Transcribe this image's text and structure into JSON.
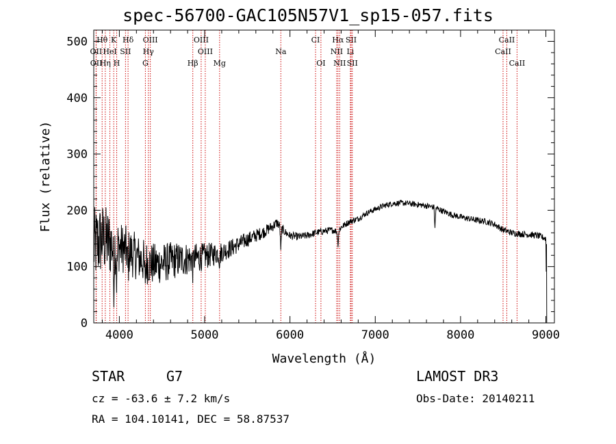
{
  "chart_data": {
    "type": "line",
    "title": "spec-56700-GAC105N57V1_sp15-057.fits",
    "xlabel": "Wavelength (Å)",
    "ylabel": "Flux (relative)",
    "xlim": [
      3700,
      9100
    ],
    "ylim": [
      0,
      520
    ],
    "xticks": [
      4000,
      5000,
      6000,
      7000,
      8000,
      9000
    ],
    "yticks": [
      0,
      100,
      200,
      300,
      400,
      500
    ],
    "continuum_x": [
      3700,
      3800,
      3900,
      4000,
      4100,
      4200,
      4300,
      4400,
      4500,
      4600,
      4700,
      4800,
      4900,
      5000,
      5100,
      5200,
      5300,
      5400,
      5500,
      5600,
      5700,
      5800,
      5850,
      5890,
      5950,
      6000,
      6100,
      6200,
      6300,
      6400,
      6500,
      6560,
      6600,
      6700,
      6800,
      6900,
      7000,
      7100,
      7200,
      7300,
      7400,
      7500,
      7600,
      7700,
      7800,
      7900,
      8000,
      8100,
      8200,
      8300,
      8400,
      8500,
      8600,
      8700,
      8800,
      8900,
      9000,
      9010
    ],
    "continuum_y": [
      135,
      150,
      140,
      135,
      128,
      118,
      108,
      104,
      106,
      110,
      112,
      114,
      115,
      118,
      122,
      126,
      132,
      140,
      148,
      155,
      162,
      172,
      178,
      170,
      160,
      155,
      153,
      155,
      160,
      163,
      165,
      162,
      170,
      180,
      185,
      195,
      202,
      208,
      212,
      213,
      212,
      210,
      208,
      205,
      198,
      192,
      188,
      185,
      182,
      180,
      175,
      165,
      160,
      158,
      157,
      155,
      150,
      0
    ],
    "noise_bands": [
      [
        3700,
        70
      ],
      [
        3900,
        60
      ],
      [
        4000,
        45
      ],
      [
        4400,
        38
      ],
      [
        4800,
        30
      ],
      [
        5200,
        18
      ],
      [
        5600,
        12
      ],
      [
        6000,
        7
      ],
      [
        7000,
        5
      ],
      [
        9000,
        6
      ]
    ],
    "absorption_features": [
      {
        "x": 3934,
        "depth": 70
      },
      {
        "x": 3969,
        "depth": 60
      },
      {
        "x": 4101,
        "depth": 40
      },
      {
        "x": 4300,
        "depth": 35
      },
      {
        "x": 4861,
        "depth": 20
      },
      {
        "x": 5175,
        "depth": 18
      },
      {
        "x": 5893,
        "depth": 40
      },
      {
        "x": 6563,
        "depth": 25
      },
      {
        "x": 7700,
        "depth": 35
      }
    ],
    "line_markers": [
      {
        "label": "Hθ",
        "x": 3798,
        "row": 0
      },
      {
        "label": "K",
        "x": 3934,
        "row": 0
      },
      {
        "label": "Hδ",
        "x": 4102,
        "row": 0
      },
      {
        "label": "OIII",
        "x": 4363,
        "row": 0
      },
      {
        "label": "OIII",
        "x": 4959,
        "row": 0
      },
      {
        "label": "CI",
        "x": 6300,
        "row": 0
      },
      {
        "label": "Hα",
        "x": 6563,
        "row": 0
      },
      {
        "label": "SII",
        "x": 6717,
        "row": 0
      },
      {
        "label": "CaII",
        "x": 8542,
        "row": 0
      },
      {
        "label": "OII",
        "x": 3727,
        "row": 1
      },
      {
        "label": "HeI",
        "x": 3889,
        "row": 1
      },
      {
        "label": "SII",
        "x": 4072,
        "row": 1
      },
      {
        "label": "Hγ",
        "x": 4340,
        "row": 1
      },
      {
        "label": "OIII",
        "x": 5007,
        "row": 1
      },
      {
        "label": "Na",
        "x": 5893,
        "row": 1
      },
      {
        "label": "NII",
        "x": 6548,
        "row": 1
      },
      {
        "label": "Li",
        "x": 6708,
        "row": 1
      },
      {
        "label": "CaII",
        "x": 8498,
        "row": 1
      },
      {
        "label": "OII",
        "x": 3729,
        "row": 2
      },
      {
        "label": "Hη",
        "x": 3835,
        "row": 2
      },
      {
        "label": "H",
        "x": 3969,
        "row": 2
      },
      {
        "label": "G",
        "x": 4305,
        "row": 2
      },
      {
        "label": "Hβ",
        "x": 4861,
        "row": 2
      },
      {
        "label": "Mg",
        "x": 5175,
        "row": 2
      },
      {
        "label": "OI",
        "x": 6363,
        "row": 2
      },
      {
        "label": "NII",
        "x": 6583,
        "row": 2
      },
      {
        "label": "SII",
        "x": 6731,
        "row": 2
      },
      {
        "label": "CaII",
        "x": 8662,
        "row": 2
      }
    ],
    "colors": {
      "spectrum": "#000000",
      "marker_line": "#cc0000",
      "axes": "#000000"
    }
  },
  "info": {
    "object_class": "STAR",
    "subclass": "G7",
    "survey": "LAMOST DR3",
    "velocity": "cz = -63.6 ± 7.2 km/s",
    "obs_date": "Obs-Date: 20140211",
    "coords": "RA = 104.10141, DEC =  58.87537"
  }
}
